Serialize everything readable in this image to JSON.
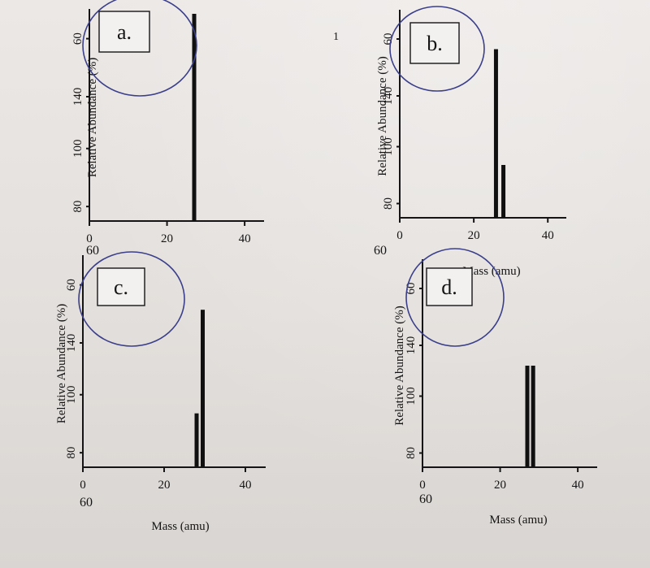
{
  "chart_data": [
    {
      "type": "bar",
      "panel_label": "a.",
      "ylabel": "Relative Abundance (%)",
      "xlabel": "",
      "x_ticks": [
        "0",
        "20",
        "40"
      ],
      "y_ticks": [
        "80",
        "100",
        "140",
        "60"
      ],
      "xlim": [
        0,
        45
      ],
      "ylim": [
        0,
        100
      ],
      "bars": [
        {
          "x": 27,
          "value": 100
        }
      ]
    },
    {
      "type": "bar",
      "panel_label": "b.",
      "ylabel": "Relative Abundance (%)",
      "xlabel": "Mass (amu)",
      "x_ticks": [
        "0",
        "20",
        "40"
      ],
      "y_ticks": [
        "80",
        "100",
        "140",
        "60"
      ],
      "xlim": [
        0,
        45
      ],
      "ylim": [
        0,
        100
      ],
      "bars": [
        {
          "x": 26,
          "value": 83
        },
        {
          "x": 28,
          "value": 26
        }
      ]
    },
    {
      "type": "bar",
      "panel_label": "c.",
      "ylabel": "Relative Abundance (%)",
      "xlabel": "Mass (amu)",
      "x_ticks": [
        "0",
        "20",
        "40"
      ],
      "y_ticks": [
        "80",
        "100",
        "140",
        "60"
      ],
      "xlim": [
        0,
        45
      ],
      "ylim": [
        0,
        100
      ],
      "bars": [
        {
          "x": 28,
          "value": 26
        },
        {
          "x": 29.5,
          "value": 76
        }
      ]
    },
    {
      "type": "bar",
      "panel_label": "d.",
      "ylabel": "Relative Abundance (%)",
      "xlabel": "Mass (amu)",
      "x_ticks": [
        "0",
        "20",
        "40"
      ],
      "y_ticks": [
        "80",
        "100",
        "140",
        "60"
      ],
      "xlim": [
        0,
        45
      ],
      "ylim": [
        0,
        100
      ],
      "bars": [
        {
          "x": 27,
          "value": 50
        },
        {
          "x": 28.5,
          "value": 50
        }
      ]
    }
  ],
  "extra_labels": {
    "a_top_left_tick": "60",
    "b_top_left_tick": "60",
    "c_below_zero": "60",
    "d_below_zero": "60",
    "b_corner_mark": "1"
  }
}
